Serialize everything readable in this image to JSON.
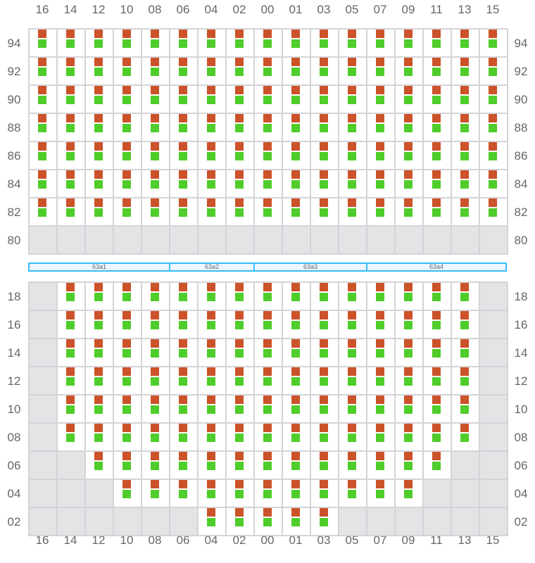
{
  "columns": [
    "16",
    "14",
    "12",
    "10",
    "08",
    "06",
    "04",
    "02",
    "00",
    "01",
    "03",
    "05",
    "07",
    "09",
    "11",
    "13",
    "15"
  ],
  "colors": {
    "status_a": "#cc5229",
    "status_b": "#4fcd2a",
    "empty": "#e4e4e7",
    "band_border": "#38bdf8",
    "band_fill": "#eff6ff"
  },
  "top_section": {
    "rows": [
      {
        "label": "94",
        "occupied": [
          "16",
          "14",
          "12",
          "10",
          "08",
          "06",
          "04",
          "02",
          "00",
          "01",
          "03",
          "05",
          "07",
          "09",
          "11",
          "13",
          "15"
        ]
      },
      {
        "label": "92",
        "occupied": [
          "16",
          "14",
          "12",
          "10",
          "08",
          "06",
          "04",
          "02",
          "00",
          "01",
          "03",
          "05",
          "07",
          "09",
          "11",
          "13",
          "15"
        ]
      },
      {
        "label": "90",
        "occupied": [
          "16",
          "14",
          "12",
          "10",
          "08",
          "06",
          "04",
          "02",
          "00",
          "01",
          "03",
          "05",
          "07",
          "09",
          "11",
          "13",
          "15"
        ]
      },
      {
        "label": "88",
        "occupied": [
          "16",
          "14",
          "12",
          "10",
          "08",
          "06",
          "04",
          "02",
          "00",
          "01",
          "03",
          "05",
          "07",
          "09",
          "11",
          "13",
          "15"
        ]
      },
      {
        "label": "86",
        "occupied": [
          "16",
          "14",
          "12",
          "10",
          "08",
          "06",
          "04",
          "02",
          "00",
          "01",
          "03",
          "05",
          "07",
          "09",
          "11",
          "13",
          "15"
        ]
      },
      {
        "label": "84",
        "occupied": [
          "16",
          "14",
          "12",
          "10",
          "08",
          "06",
          "04",
          "02",
          "00",
          "01",
          "03",
          "05",
          "07",
          "09",
          "11",
          "13",
          "15"
        ]
      },
      {
        "label": "82",
        "occupied": [
          "16",
          "14",
          "12",
          "10",
          "08",
          "06",
          "04",
          "02",
          "00",
          "01",
          "03",
          "05",
          "07",
          "09",
          "11",
          "13",
          "15"
        ]
      },
      {
        "label": "80",
        "occupied": []
      }
    ]
  },
  "band": [
    {
      "label": "63a1",
      "span": 5
    },
    {
      "label": "63a2",
      "span": 3
    },
    {
      "label": "63a3",
      "span": 4
    },
    {
      "label": "63a4",
      "span": 5
    }
  ],
  "bottom_section": {
    "rows": [
      {
        "label": "18",
        "occupied": [
          "14",
          "12",
          "10",
          "08",
          "06",
          "04",
          "02",
          "00",
          "01",
          "03",
          "05",
          "07",
          "09",
          "11",
          "13"
        ]
      },
      {
        "label": "16",
        "occupied": [
          "14",
          "12",
          "10",
          "08",
          "06",
          "04",
          "02",
          "00",
          "01",
          "03",
          "05",
          "07",
          "09",
          "11",
          "13"
        ]
      },
      {
        "label": "14",
        "occupied": [
          "14",
          "12",
          "10",
          "08",
          "06",
          "04",
          "02",
          "00",
          "01",
          "03",
          "05",
          "07",
          "09",
          "11",
          "13"
        ]
      },
      {
        "label": "12",
        "occupied": [
          "14",
          "12",
          "10",
          "08",
          "06",
          "04",
          "02",
          "00",
          "01",
          "03",
          "05",
          "07",
          "09",
          "11",
          "13"
        ]
      },
      {
        "label": "10",
        "occupied": [
          "14",
          "12",
          "10",
          "08",
          "06",
          "04",
          "02",
          "00",
          "01",
          "03",
          "05",
          "07",
          "09",
          "11",
          "13"
        ]
      },
      {
        "label": "08",
        "occupied": [
          "14",
          "12",
          "10",
          "08",
          "06",
          "04",
          "02",
          "00",
          "01",
          "03",
          "05",
          "07",
          "09",
          "11",
          "13"
        ]
      },
      {
        "label": "06",
        "occupied": [
          "12",
          "10",
          "08",
          "06",
          "04",
          "02",
          "00",
          "01",
          "03",
          "05",
          "07",
          "09",
          "11"
        ]
      },
      {
        "label": "04",
        "occupied": [
          "10",
          "08",
          "06",
          "04",
          "02",
          "00",
          "01",
          "03",
          "05",
          "07",
          "09"
        ]
      },
      {
        "label": "02",
        "occupied": [
          "04",
          "02",
          "00",
          "01",
          "03"
        ]
      }
    ]
  }
}
